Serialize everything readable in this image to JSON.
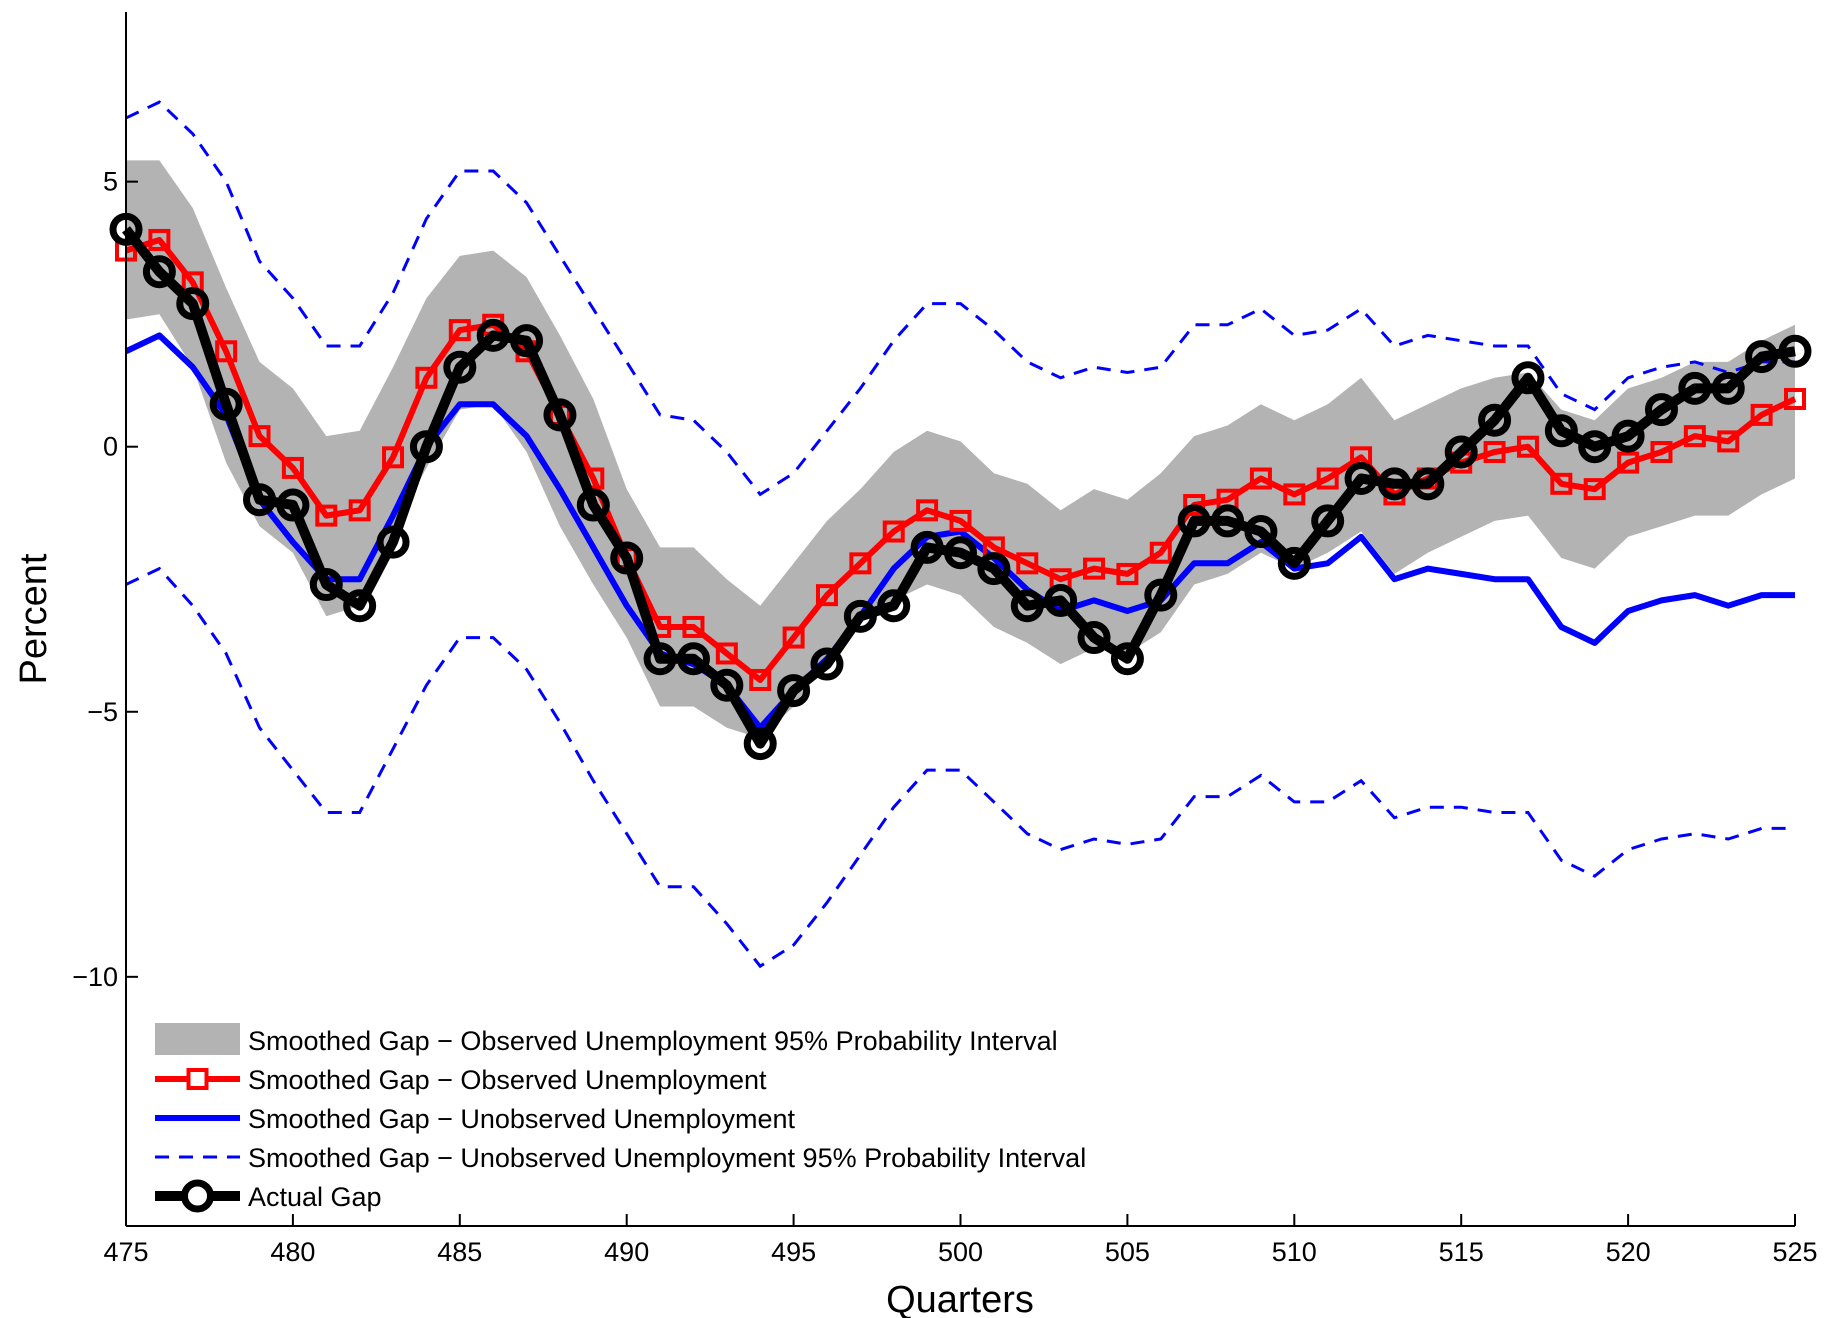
{
  "chart_data": {
    "type": "line",
    "xlabel": "Quarters",
    "ylabel": "Percent",
    "xlim": [
      475,
      525
    ],
    "ylim": [
      -14.7,
      8.2
    ],
    "x_ticks": [
      475,
      480,
      485,
      490,
      495,
      500,
      505,
      510,
      515,
      520,
      525
    ],
    "y_ticks": [
      5,
      0,
      -5,
      -10
    ],
    "y_tick_labels": [
      "5",
      "0",
      "−5",
      "−10"
    ],
    "legend_position": "bottom-left",
    "grid": false,
    "x": [
      475,
      476,
      477,
      478,
      479,
      480,
      481,
      482,
      483,
      484,
      485,
      486,
      487,
      488,
      489,
      490,
      491,
      492,
      493,
      494,
      495,
      496,
      497,
      498,
      499,
      500,
      501,
      502,
      503,
      504,
      505,
      506,
      507,
      508,
      509,
      510,
      511,
      512,
      513,
      514,
      515,
      516,
      517,
      518,
      519,
      520,
      521,
      522,
      523,
      524,
      525
    ],
    "series": [
      {
        "name": "Smoothed Gap − Observed Unemployment 95% Probability Interval",
        "kind": "band",
        "color": "#b3b3b3",
        "lower": [
          2.4,
          2.5,
          1.5,
          -0.3,
          -1.5,
          -2.0,
          -3.2,
          -3.0,
          -1.6,
          -0.4,
          0.7,
          0.8,
          -0.1,
          -1.5,
          -2.6,
          -3.6,
          -4.9,
          -4.9,
          -5.3,
          -5.5,
          -4.9,
          -4.0,
          -3.2,
          -2.9,
          -2.6,
          -2.8,
          -3.4,
          -3.7,
          -4.1,
          -3.8,
          -3.9,
          -3.5,
          -2.6,
          -2.4,
          -2.0,
          -2.3,
          -2.0,
          -1.6,
          -2.4,
          -2.0,
          -1.7,
          -1.4,
          -1.3,
          -2.1,
          -2.3,
          -1.7,
          -1.5,
          -1.3,
          -1.3,
          -0.9,
          -0.6
        ],
        "upper": [
          5.4,
          5.4,
          4.5,
          3.0,
          1.6,
          1.1,
          0.2,
          0.3,
          1.5,
          2.8,
          3.6,
          3.7,
          3.2,
          2.1,
          0.9,
          -0.8,
          -1.9,
          -1.9,
          -2.5,
          -3.0,
          -2.2,
          -1.4,
          -0.8,
          -0.1,
          0.3,
          0.1,
          -0.5,
          -0.7,
          -1.2,
          -0.8,
          -1.0,
          -0.5,
          0.2,
          0.4,
          0.8,
          0.5,
          0.8,
          1.3,
          0.5,
          0.8,
          1.1,
          1.3,
          1.4,
          0.7,
          0.5,
          1.1,
          1.3,
          1.6,
          1.6,
          2.0,
          2.3
        ]
      },
      {
        "name": "Smoothed Gap − Observed Unemployment",
        "kind": "line",
        "color": "#ff0000",
        "marker": "square",
        "values": [
          3.7,
          3.9,
          3.1,
          1.8,
          0.2,
          -0.4,
          -1.3,
          -1.2,
          -0.2,
          1.3,
          2.2,
          2.3,
          1.8,
          0.6,
          -0.6,
          -2.1,
          -3.4,
          -3.4,
          -3.9,
          -4.4,
          -3.6,
          -2.8,
          -2.2,
          -1.6,
          -1.2,
          -1.4,
          -1.9,
          -2.2,
          -2.5,
          -2.3,
          -2.4,
          -2.0,
          -1.1,
          -1.0,
          -0.6,
          -0.9,
          -0.6,
          -0.2,
          -0.9,
          -0.6,
          -0.3,
          -0.1,
          0.0,
          -0.7,
          -0.8,
          -0.3,
          -0.1,
          0.2,
          0.1,
          0.6,
          0.9
        ]
      },
      {
        "name": "Smoothed Gap − Unobserved Unemployment",
        "kind": "line",
        "color": "#0000ff",
        "values": [
          1.8,
          2.1,
          1.5,
          0.6,
          -1.0,
          -1.8,
          -2.5,
          -2.5,
          -1.3,
          0.0,
          0.8,
          0.8,
          0.2,
          -0.8,
          -1.9,
          -3.0,
          -3.9,
          -4.1,
          -4.5,
          -5.3,
          -4.6,
          -4.0,
          -3.2,
          -2.3,
          -1.7,
          -1.6,
          -2.1,
          -2.7,
          -3.1,
          -2.9,
          -3.1,
          -2.9,
          -2.2,
          -2.2,
          -1.8,
          -2.3,
          -2.2,
          -1.7,
          -2.5,
          -2.3,
          -2.4,
          -2.5,
          -2.5,
          -3.4,
          -3.7,
          -3.1,
          -2.9,
          -2.8,
          -3.0,
          -2.8,
          -2.8
        ]
      },
      {
        "name": "Smoothed Gap − Unobserved Unemployment 95% Probability Interval",
        "kind": "dashed-band",
        "color": "#0000ff",
        "upper": [
          6.2,
          6.5,
          5.9,
          5.0,
          3.5,
          2.8,
          1.9,
          1.9,
          2.9,
          4.3,
          5.2,
          5.2,
          4.6,
          3.6,
          2.6,
          1.6,
          0.6,
          0.5,
          -0.1,
          -0.9,
          -0.5,
          0.3,
          1.1,
          2.0,
          2.7,
          2.7,
          2.2,
          1.6,
          1.3,
          1.5,
          1.4,
          1.5,
          2.3,
          2.3,
          2.6,
          2.1,
          2.2,
          2.6,
          1.9,
          2.1,
          2.0,
          1.9,
          1.9,
          1.0,
          0.7,
          1.3,
          1.5,
          1.6,
          1.4,
          1.6,
          1.6
        ],
        "lower": [
          -2.6,
          -2.3,
          -3.0,
          -3.9,
          -5.3,
          -6.1,
          -6.9,
          -6.9,
          -5.7,
          -4.5,
          -3.6,
          -3.6,
          -4.2,
          -5.2,
          -6.3,
          -7.3,
          -8.3,
          -8.3,
          -9.0,
          -9.8,
          -9.4,
          -8.6,
          -7.7,
          -6.8,
          -6.1,
          -6.1,
          -6.7,
          -7.3,
          -7.6,
          -7.4,
          -7.5,
          -7.4,
          -6.6,
          -6.6,
          -6.2,
          -6.7,
          -6.7,
          -6.3,
          -7.0,
          -6.8,
          -6.8,
          -6.9,
          -6.9,
          -7.8,
          -8.1,
          -7.6,
          -7.4,
          -7.3,
          -7.4,
          -7.2,
          -7.2
        ]
      },
      {
        "name": "Actual Gap",
        "kind": "line",
        "color": "#000000",
        "marker": "circle",
        "values": [
          4.1,
          3.3,
          2.7,
          0.8,
          -1.0,
          -1.1,
          -2.6,
          -3.0,
          -1.8,
          0.0,
          1.5,
          2.1,
          2.0,
          0.6,
          -1.1,
          -2.1,
          -4.0,
          -4.0,
          -4.5,
          -5.6,
          -4.6,
          -4.1,
          -3.2,
          -3.0,
          -1.9,
          -2.0,
          -2.3,
          -3.0,
          -2.9,
          -3.6,
          -4.0,
          -2.8,
          -1.4,
          -1.4,
          -1.6,
          -2.2,
          -1.4,
          -0.6,
          -0.7,
          -0.7,
          -0.1,
          0.5,
          1.3,
          0.3,
          0.0,
          0.2,
          0.7,
          1.1,
          1.1,
          1.7,
          1.8
        ]
      }
    ]
  }
}
